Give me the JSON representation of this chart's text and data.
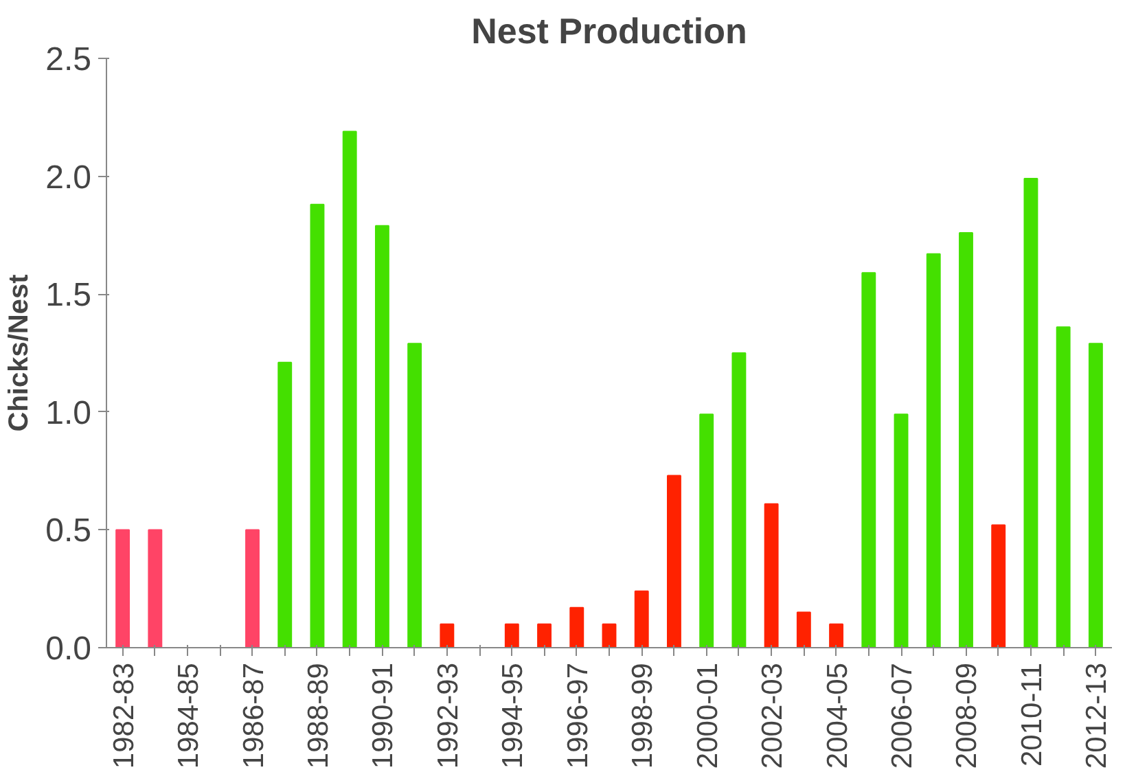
{
  "chart_data": {
    "type": "bar",
    "title": "Nest Production",
    "ylabel": "Chicks/Nest",
    "categories": [
      "1982-83",
      null,
      "1984-85",
      null,
      "1986-87",
      null,
      "1988-89",
      null,
      "1990-91",
      null,
      "1992-93",
      null,
      "1994-95",
      null,
      "1996-97",
      null,
      "1998-99",
      null,
      "2000-01",
      null,
      "2002-03",
      null,
      "2004-05",
      null,
      "2006-07",
      null,
      "2008-09",
      null,
      "2010-11",
      null,
      "2012-13"
    ],
    "values": [
      0.5,
      0.5,
      null,
      null,
      0.5,
      1.21,
      1.88,
      2.19,
      1.79,
      1.29,
      0.1,
      null,
      0.1,
      0.1,
      0.17,
      0.1,
      0.24,
      0.73,
      0.99,
      1.25,
      0.61,
      0.15,
      0.1,
      1.59,
      0.99,
      1.67,
      1.76,
      0.52,
      1.99,
      1.36,
      1.29
    ],
    "colors": [
      "#ff4466",
      "#ff4466",
      "#ff4466",
      "#ff4466",
      "#ff4466",
      "#44e000",
      "#44e000",
      "#44e000",
      "#44e000",
      "#44e000",
      "#ff2200",
      "#ff2200",
      "#ff2200",
      "#ff2200",
      "#ff2200",
      "#ff2200",
      "#ff2200",
      "#ff2200",
      "#44e000",
      "#44e000",
      "#ff2200",
      "#ff2200",
      "#ff2200",
      "#44e000",
      "#44e000",
      "#44e000",
      "#44e000",
      "#ff2200",
      "#44e000",
      "#44e000",
      "#44e000"
    ],
    "ylim": [
      0,
      2.5
    ],
    "yticks": [
      {
        "value": 0,
        "label": "0.0"
      },
      {
        "value": 0.5,
        "label": "0.5"
      },
      {
        "value": 1,
        "label": "1.0"
      },
      {
        "value": 1.5,
        "label": "1.5"
      },
      {
        "value": 2,
        "label": "2.0"
      },
      {
        "value": 2.5,
        "label": "2.5"
      }
    ],
    "grid": false
  }
}
